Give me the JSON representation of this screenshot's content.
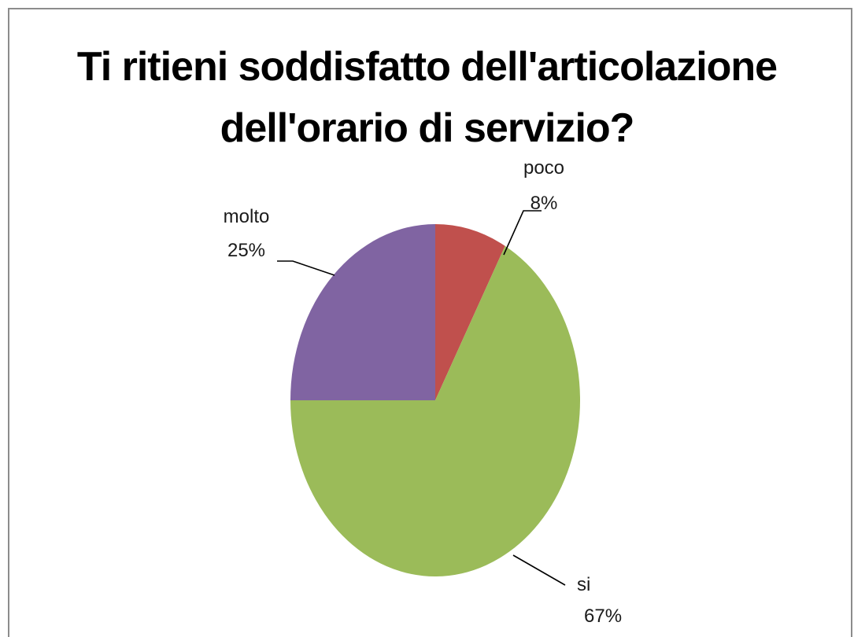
{
  "chart_data": {
    "type": "pie",
    "title": "Ti ritieni soddisfatto dell'articolazione dell'orario di servizio?",
    "title_lines": [
      "Ti ritieni soddisfatto dell'articolazione",
      "dell'orario di servizio?"
    ],
    "slices": [
      {
        "label": "poco",
        "value": 8,
        "value_label": "8%",
        "color": "#c0504d"
      },
      {
        "label": "si",
        "value": 67,
        "value_label": "67%",
        "color": "#9bbb59"
      },
      {
        "label": "molto",
        "value": 25,
        "value_label": "25%",
        "color": "#8064a2"
      }
    ],
    "legend": "none"
  }
}
